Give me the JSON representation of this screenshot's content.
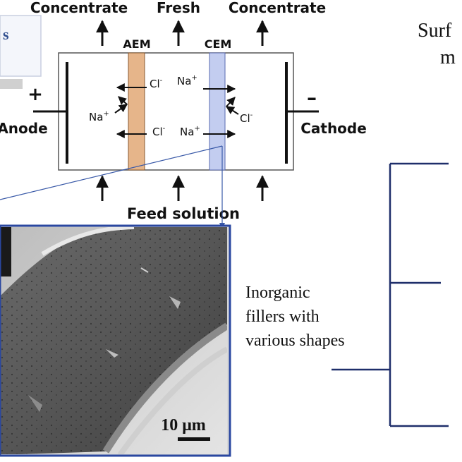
{
  "top_labels": {
    "left": "Concentrate",
    "middle": "Fresh",
    "right": "Concentrate"
  },
  "membranes": {
    "aem": "AEM",
    "cem": "CEM"
  },
  "electrodes": {
    "anode": "Anode",
    "cathode": "Cathode",
    "anode_sign": "+",
    "cathode_sign": "–"
  },
  "ions": {
    "cl": "Cl",
    "na": "Na",
    "cl_charge": "-",
    "na_charge": "+"
  },
  "feed": "Feed solution",
  "fragments": {
    "top_left": "s",
    "top_right_1": "Surf",
    "top_right_2": "m"
  },
  "fillers": {
    "line1": "Inorganic",
    "line2": "fillers with",
    "line3": "various shapes"
  },
  "scale_bar": "10 μm",
  "colors": {
    "aem": "#e6b58a",
    "cem": "#c3cdf0",
    "frame_blue": "#2a47a0",
    "sem_dark": "#4a4a4a"
  }
}
